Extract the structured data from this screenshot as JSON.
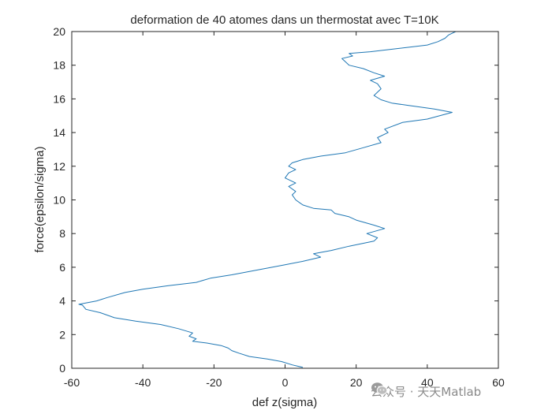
{
  "chart_data": {
    "type": "line",
    "title": "deformation de 40  atomes dans un thermostat avec T=10K",
    "xlabel": "def z(sigma)",
    "ylabel": "force(epsilon/sigma)",
    "xlim": [
      -60,
      60
    ],
    "ylim": [
      0,
      20
    ],
    "xticks": [
      -60,
      -40,
      -20,
      0,
      20,
      40,
      60
    ],
    "yticks": [
      0,
      2,
      4,
      6,
      8,
      10,
      12,
      14,
      16,
      18,
      20
    ],
    "grid": false,
    "line_color": "#1f77b4",
    "series": [
      {
        "x": [
          5,
          2,
          -1,
          -5,
          -10,
          -13,
          -15,
          -16,
          -18,
          -22,
          -26,
          -25,
          -27,
          -26,
          -30,
          -35,
          -42,
          -48,
          -52,
          -56,
          -57,
          -58,
          -53,
          -50,
          -45,
          -40,
          -33,
          -25,
          -21,
          -15,
          -10,
          -5,
          0,
          5,
          10,
          8,
          13,
          18,
          25,
          26,
          23,
          28,
          25,
          20,
          18,
          14,
          13,
          8,
          5,
          3,
          2,
          3,
          1,
          3,
          0,
          1,
          3,
          1,
          2,
          5,
          10,
          17,
          22,
          27,
          26,
          29,
          28,
          33,
          40,
          47,
          42,
          35,
          30,
          27,
          25,
          26,
          27,
          26,
          24,
          28,
          25,
          22,
          18,
          17,
          16,
          19,
          18,
          24,
          32,
          40,
          43,
          45,
          46,
          48
        ],
        "y": [
          0.05,
          0.2,
          0.4,
          0.55,
          0.7,
          0.9,
          1.05,
          1.2,
          1.35,
          1.5,
          1.6,
          1.75,
          1.9,
          2.1,
          2.35,
          2.6,
          2.8,
          3.0,
          3.3,
          3.5,
          3.75,
          3.8,
          4.0,
          4.2,
          4.5,
          4.7,
          4.9,
          5.1,
          5.35,
          5.55,
          5.75,
          5.95,
          6.15,
          6.35,
          6.6,
          6.8,
          7.0,
          7.25,
          7.55,
          7.75,
          8.0,
          8.3,
          8.5,
          8.8,
          9.0,
          9.2,
          9.4,
          9.5,
          9.7,
          10.0,
          10.3,
          10.5,
          10.8,
          11.0,
          11.3,
          11.6,
          11.8,
          12.0,
          12.2,
          12.4,
          12.6,
          12.8,
          13.1,
          13.4,
          13.7,
          14.0,
          14.2,
          14.6,
          14.8,
          15.2,
          15.4,
          15.6,
          15.75,
          15.95,
          16.2,
          16.4,
          16.6,
          16.9,
          17.1,
          17.35,
          17.55,
          17.8,
          18.0,
          18.2,
          18.4,
          18.55,
          18.7,
          18.8,
          19.0,
          19.2,
          19.4,
          19.6,
          19.8,
          20.0
        ]
      }
    ]
  },
  "watermark": {
    "text": "公众号 · 天天Matlab",
    "icon": "wechat-icon"
  }
}
